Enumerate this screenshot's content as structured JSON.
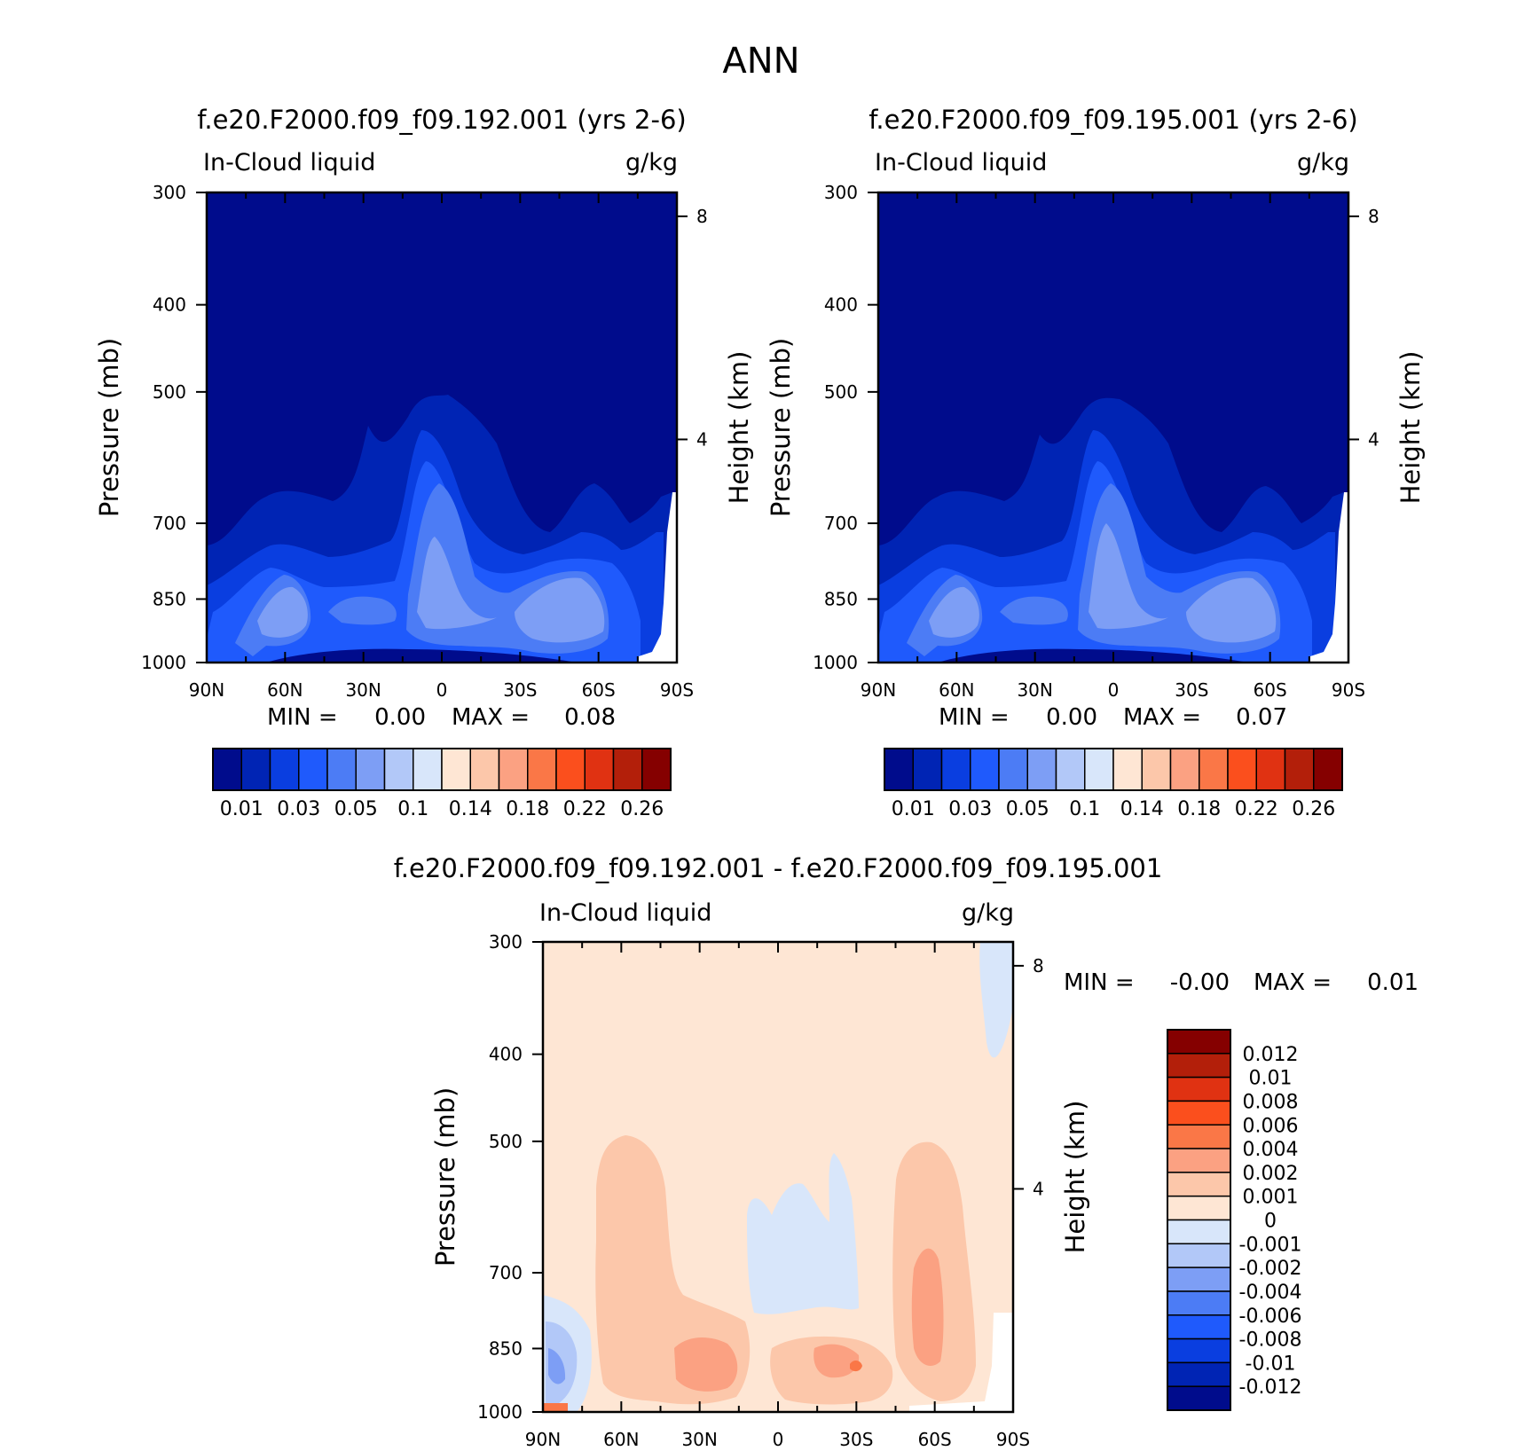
{
  "figure": {
    "title": "ANN"
  },
  "chart_data": [
    {
      "type": "heatmap",
      "title": "f.e20.F2000.f09_f09.192.001 (yrs 2-6)",
      "left_label": "In-Cloud liquid",
      "units": "g/kg",
      "ylabel": "Pressure (mb)",
      "ylabel_right": "Height (km)",
      "x_ticks": [
        "90N",
        "60N",
        "30N",
        "0",
        "30S",
        "60S",
        "90S"
      ],
      "y_ticks": [
        "300",
        "400",
        "500",
        "700",
        "850",
        "1000"
      ],
      "y_right_ticks": [
        "8",
        "4"
      ],
      "ylim": [
        1000,
        300
      ],
      "stats": {
        "min_label": "MIN =",
        "min": "0.00",
        "max_label": "MAX =",
        "max": "0.08"
      },
      "colorbar": {
        "colors": [
          "#000c8c",
          "#0024b4",
          "#0a3ee0",
          "#1f5afc",
          "#4c7cf5",
          "#7d9ef5",
          "#b2c8f8",
          "#d8e6fa",
          "#fee6d4",
          "#fcc7aa",
          "#fba182",
          "#fa7747",
          "#fb4f1d",
          "#e03212",
          "#b31f0a",
          "#850000"
        ],
        "labels": [
          "0.01",
          "0.03",
          "0.05",
          "0.1",
          "0.14",
          "0.18",
          "0.22",
          "0.26"
        ]
      }
    },
    {
      "type": "heatmap",
      "title": "f.e20.F2000.f09_f09.195.001 (yrs 2-6)",
      "left_label": "In-Cloud liquid",
      "units": "g/kg",
      "ylabel": "Pressure (mb)",
      "ylabel_right": "Height (km)",
      "x_ticks": [
        "90N",
        "60N",
        "30N",
        "0",
        "30S",
        "60S",
        "90S"
      ],
      "y_ticks": [
        "300",
        "400",
        "500",
        "700",
        "850",
        "1000"
      ],
      "y_right_ticks": [
        "8",
        "4"
      ],
      "ylim": [
        1000,
        300
      ],
      "stats": {
        "min_label": "MIN =",
        "min": "0.00",
        "max_label": "MAX =",
        "max": "0.07"
      },
      "colorbar": {
        "colors": [
          "#000c8c",
          "#0024b4",
          "#0a3ee0",
          "#1f5afc",
          "#4c7cf5",
          "#7d9ef5",
          "#b2c8f8",
          "#d8e6fa",
          "#fee6d4",
          "#fcc7aa",
          "#fba182",
          "#fa7747",
          "#fb4f1d",
          "#e03212",
          "#b31f0a",
          "#850000"
        ],
        "labels": [
          "0.01",
          "0.03",
          "0.05",
          "0.1",
          "0.14",
          "0.18",
          "0.22",
          "0.26"
        ]
      }
    },
    {
      "type": "heatmap",
      "title": "f.e20.F2000.f09_f09.192.001 - f.e20.F2000.f09_f09.195.001",
      "left_label": "In-Cloud liquid",
      "units": "g/kg",
      "ylabel": "Pressure (mb)",
      "ylabel_right": "Height (km)",
      "x_ticks": [
        "90N",
        "60N",
        "30N",
        "0",
        "30S",
        "60S",
        "90S"
      ],
      "y_ticks": [
        "300",
        "400",
        "500",
        "700",
        "850",
        "1000"
      ],
      "y_right_ticks": [
        "8",
        "4"
      ],
      "ylim": [
        1000,
        300
      ],
      "stats": {
        "min_label": "MIN =",
        "min": "-0.00",
        "max_label": "MAX =",
        "max": "0.01"
      },
      "colorbar": {
        "colors": [
          "#850000",
          "#b31f0a",
          "#e03212",
          "#fb4f1d",
          "#fa7747",
          "#fba182",
          "#fcc7aa",
          "#fee6d4",
          "#d8e6fa",
          "#b2c8f8",
          "#7d9ef5",
          "#4c7cf5",
          "#1f5afc",
          "#0a3ee0",
          "#0024b4",
          "#000c8c"
        ],
        "labels": [
          "0.012",
          "0.01",
          "0.008",
          "0.006",
          "0.004",
          "0.002",
          "0.001",
          "0",
          "-0.001",
          "-0.002",
          "-0.004",
          "-0.006",
          "-0.008",
          "-0.01",
          "-0.012"
        ]
      }
    }
  ]
}
